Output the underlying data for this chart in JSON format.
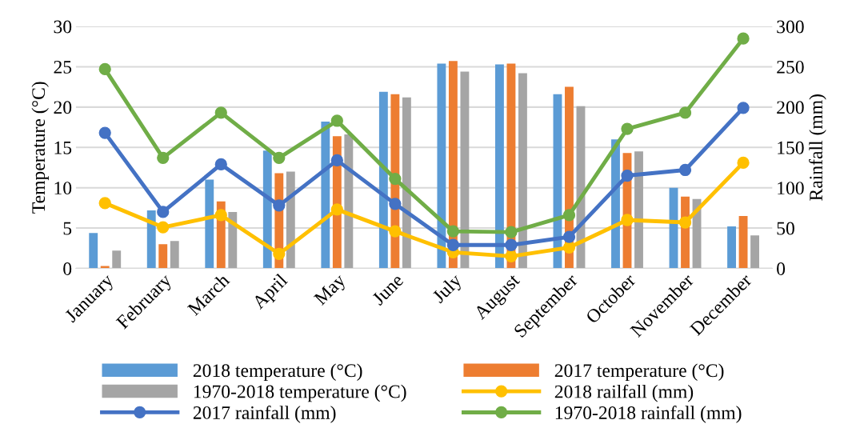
{
  "chart_data": {
    "type": "bar",
    "categories": [
      "January",
      "February",
      "March",
      "April",
      "May",
      "June",
      "July",
      "August",
      "September",
      "October",
      "November",
      "December"
    ],
    "ylabel": "Temperature (°C)",
    "y2label": "Rainfall (mm)",
    "ylim": [
      0,
      30
    ],
    "yticks": [
      0,
      5,
      10,
      15,
      20,
      25,
      30
    ],
    "y2lim": [
      0,
      300
    ],
    "y2ticks": [
      0,
      50,
      100,
      150,
      200,
      250,
      300
    ],
    "grid": "y",
    "legend": "bottom",
    "marker": "circle",
    "series": [
      {
        "name": "2018 temperature (°C)",
        "color": "#5b9bd5",
        "values": [
          4.4,
          7.2,
          11.0,
          14.6,
          18.2,
          21.9,
          25.4,
          25.3,
          21.6,
          16.0,
          10.0,
          5.2
        ]
      },
      {
        "name": "2017 temperature (°C)",
        "color": "#ed7d31",
        "values": [
          0.3,
          3.0,
          8.3,
          11.8,
          16.4,
          21.6,
          25.7,
          25.4,
          22.5,
          14.3,
          8.9,
          6.5
        ]
      },
      {
        "name": "1970-2018 temperature (°C)",
        "color": "#a5a5a5",
        "values": [
          2.2,
          3.4,
          7.0,
          12.0,
          16.6,
          21.2,
          24.4,
          24.2,
          20.1,
          14.5,
          8.6,
          4.1
        ]
      },
      {
        "name": "2018 railfall (mm)",
        "type": "line",
        "axis": "y2",
        "color": "#ffc000",
        "values": [
          81,
          51,
          66,
          18,
          73,
          46,
          20,
          15,
          26,
          60,
          57,
          131
        ]
      },
      {
        "name": "2017 rainfall (mm)",
        "type": "line",
        "axis": "y2",
        "color": "#4472c4",
        "values": [
          168,
          70,
          129,
          78,
          134,
          80,
          29,
          29,
          39,
          115,
          122,
          199
        ]
      },
      {
        "name": "1970-2018 rainfall (mm)",
        "type": "line",
        "axis": "y2",
        "color": "#70ad47",
        "values": [
          247,
          137,
          193,
          137,
          183,
          111,
          46,
          45,
          66,
          173,
          193,
          285
        ]
      }
    ]
  }
}
